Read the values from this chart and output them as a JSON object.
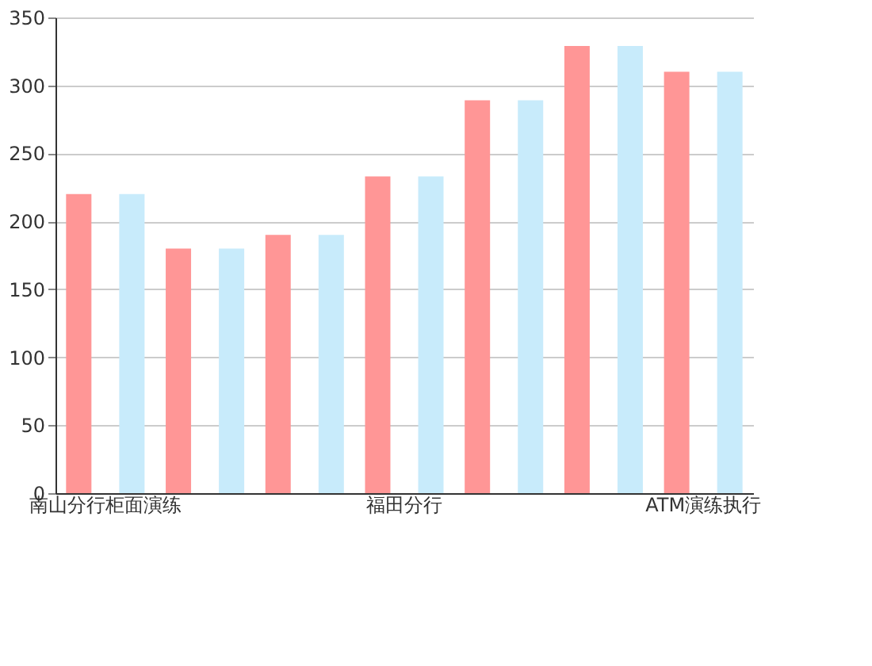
{
  "chart_data": {
    "type": "bar",
    "categories": [
      "南山分行柜面演练",
      null,
      null,
      "福田分行",
      null,
      null,
      "ATM演练执行"
    ],
    "series": [
      {
        "color": "#ff9696",
        "values": [
          220,
          180,
          190,
          233,
          289,
          329,
          310
        ]
      },
      {
        "color": "#c8ebfb",
        "values": [
          220,
          180,
          190,
          233,
          289,
          329,
          310
        ]
      }
    ],
    "ylim": [
      0,
      350
    ],
    "yticks": [
      0,
      50,
      100,
      150,
      200,
      250,
      300,
      350
    ],
    "grid": "y",
    "legend": false
  }
}
